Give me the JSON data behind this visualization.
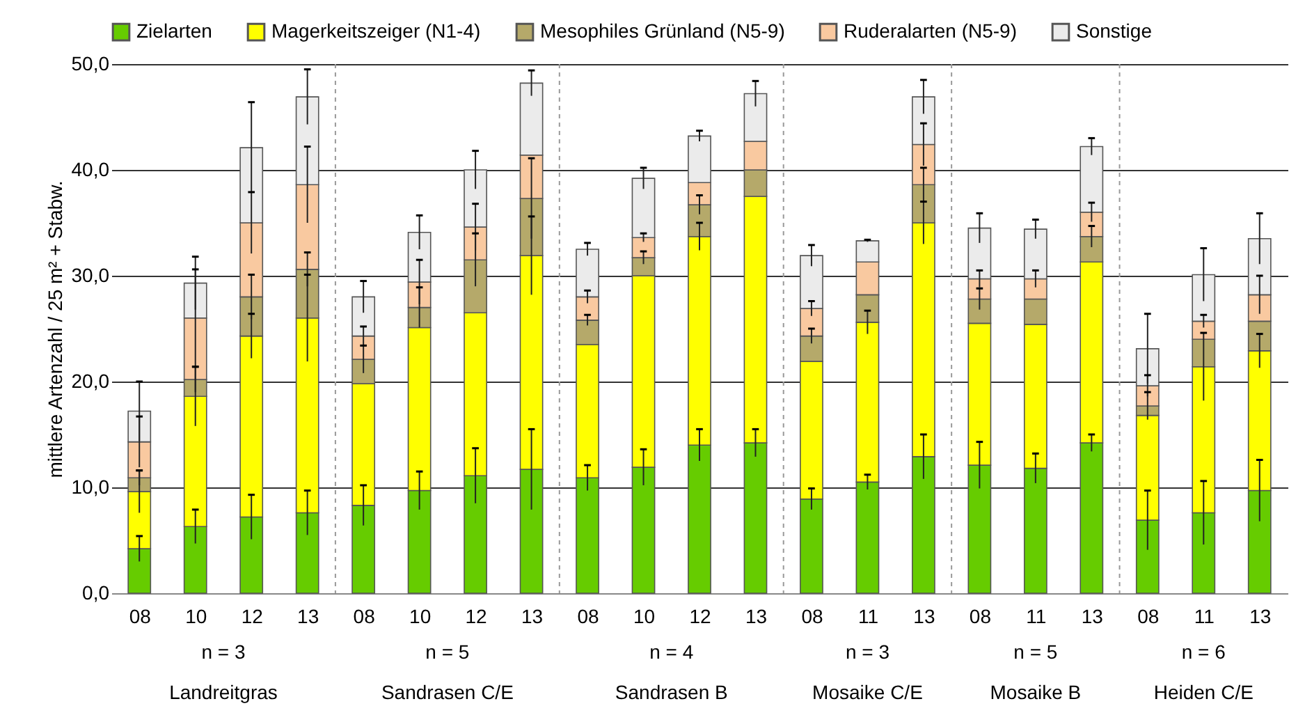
{
  "chart_data": {
    "type": "bar",
    "stacked": true,
    "ylabel": "mittlere Artenzahl / 25 m² + Stabw.",
    "categories": [
      "08",
      "10",
      "12",
      "13",
      "08",
      "10",
      "12",
      "13",
      "08",
      "10",
      "12",
      "13",
      "08",
      "11",
      "13",
      "08",
      "11",
      "13",
      "08",
      "11",
      "13"
    ],
    "annotations": [
      "n = 3",
      "Landreitgras",
      "n = 5",
      "Sandrasen C/E",
      "n = 4",
      "Sandrasen B",
      "n = 3",
      "Mosaike C/E",
      "n = 5",
      "Mosaike B",
      "n = 6",
      "Heiden C/E"
    ],
    "series": [
      {
        "name": "Zielarten",
        "color": "#66cc00",
        "values": [
          4.2,
          6.3,
          7.2,
          7.6,
          8.3,
          9.7,
          11.1,
          11.7,
          10.9,
          11.9,
          14.0,
          14.2,
          8.9,
          10.5,
          12.9,
          12.1,
          11.8,
          14.2,
          6.9,
          7.6,
          9.7
        ],
        "errors": [
          1.2,
          1.6,
          2.1,
          2.1,
          1.9,
          1.8,
          2.6,
          3.8,
          1.2,
          1.7,
          1.5,
          1.3,
          1.0,
          0.7,
          2.1,
          2.2,
          1.4,
          0.8,
          2.8,
          3.0,
          2.9
        ]
      },
      {
        "name": "Magerkeitszeiger (N1-4)",
        "color": "#ffff00",
        "values": [
          5.4,
          12.3,
          17.1,
          18.4,
          11.5,
          15.4,
          15.4,
          20.2,
          12.6,
          18.1,
          19.7,
          23.3,
          13.0,
          15.1,
          22.1,
          13.4,
          13.6,
          17.1,
          9.9,
          13.8,
          13.2
        ],
        "errors": [
          2.0,
          2.8,
          2.1,
          4.1,
          null,
          null,
          null,
          3.7,
          null,
          null,
          1.3,
          null,
          null,
          1.1,
          2.0,
          null,
          null,
          null,
          null,
          3.2,
          1.6
        ]
      },
      {
        "name": "Mesophiles Grünland (N5-9)",
        "color": "#b5a96a",
        "values": [
          1.3,
          1.6,
          3.7,
          4.6,
          2.3,
          1.9,
          5.0,
          5.4,
          2.3,
          1.7,
          3.0,
          2.5,
          2.4,
          2.6,
          3.6,
          2.3,
          2.4,
          2.4,
          0.9,
          2.6,
          2.8
        ],
        "errors": [
          0.7,
          1.2,
          2.1,
          1.6,
          1.3,
          1.9,
          2.5,
          3.8,
          0.5,
          0.6,
          0.9,
          null,
          0.7,
          null,
          1.6,
          1.0,
          null,
          1.0,
          1.3,
          null,
          null
        ]
      },
      {
        "name": "Ruderalarten (N5-9)",
        "color": "#f9c9a0",
        "values": [
          3.4,
          5.8,
          7.0,
          8.0,
          2.2,
          2.4,
          3.1,
          4.1,
          2.2,
          1.9,
          2.1,
          2.7,
          2.6,
          3.1,
          3.8,
          1.9,
          1.9,
          2.3,
          1.9,
          1.7,
          2.5
        ],
        "errors": [
          2.4,
          4.6,
          2.9,
          3.6,
          0.9,
          2.1,
          2.2,
          null,
          0.6,
          0.4,
          null,
          null,
          0.7,
          null,
          2.0,
          0.8,
          0.8,
          0.9,
          1.0,
          0.6,
          1.8
        ]
      },
      {
        "name": "Sonstige",
        "color": "#ebebeb",
        "values": [
          2.9,
          3.3,
          7.1,
          8.3,
          3.7,
          4.7,
          5.4,
          6.8,
          4.5,
          5.6,
          4.4,
          4.5,
          5.0,
          2.0,
          4.5,
          4.8,
          4.7,
          6.2,
          3.5,
          4.4,
          5.3
        ],
        "errors": [
          2.8,
          2.5,
          4.3,
          2.6,
          1.5,
          1.6,
          1.8,
          1.2,
          0.6,
          1.0,
          0.5,
          1.2,
          1.0,
          0.1,
          1.6,
          1.4,
          0.9,
          0.8,
          3.3,
          2.5,
          2.4
        ]
      }
    ],
    "ylim": [
      0,
      50
    ],
    "yticks": [
      {
        "value": 0,
        "label": "0,0"
      },
      {
        "value": 10,
        "label": "10,0"
      },
      {
        "value": 20,
        "label": "20,0"
      },
      {
        "value": 30,
        "label": "30,0"
      },
      {
        "value": 40,
        "label": "40,0"
      },
      {
        "value": 50,
        "label": "50,0"
      }
    ],
    "grid": "y",
    "legend": "top"
  }
}
